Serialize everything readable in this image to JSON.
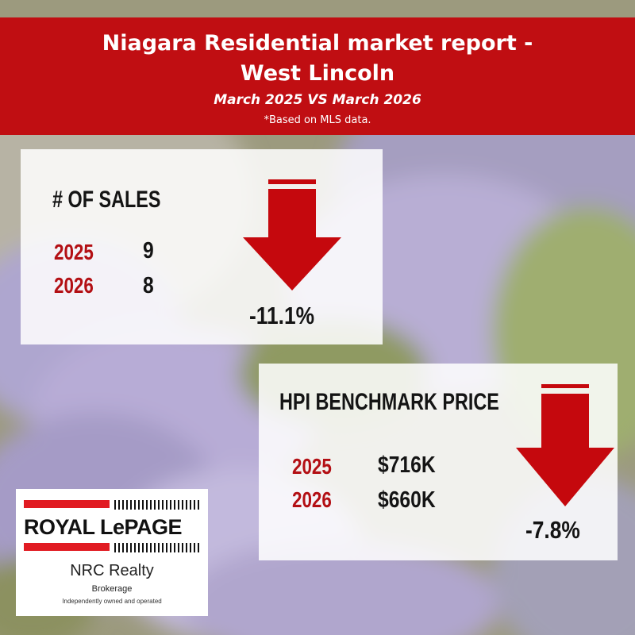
{
  "header": {
    "title_line1": "Niagara Residential market report -",
    "title_line2": "West Lincoln",
    "subtitle": "March 2025 VS March 2026",
    "note": "*Based on MLS data."
  },
  "sales": {
    "label": "# OF SALES",
    "rows": [
      {
        "year": "2025",
        "value": "9"
      },
      {
        "year": "2026",
        "value": "8"
      }
    ],
    "change": "-11.1%",
    "direction_icon": "down-arrow-icon"
  },
  "hpi": {
    "label": "HPI BENCHMARK PRICE",
    "rows": [
      {
        "year": "2025",
        "value": "$716K"
      },
      {
        "year": "2026",
        "value": "$660K"
      }
    ],
    "change": "-7.8%",
    "direction_icon": "down-arrow-icon"
  },
  "logo": {
    "brand": "ROYAL LePAGE",
    "office": "NRC Realty",
    "type": "Brokerage",
    "tagline": "Independently owned and operated"
  },
  "colors": {
    "header_red": "#c00e12",
    "arrow_red": "#c5080d",
    "year_red": "#b30f14",
    "background_purple": "#a99cc6"
  }
}
